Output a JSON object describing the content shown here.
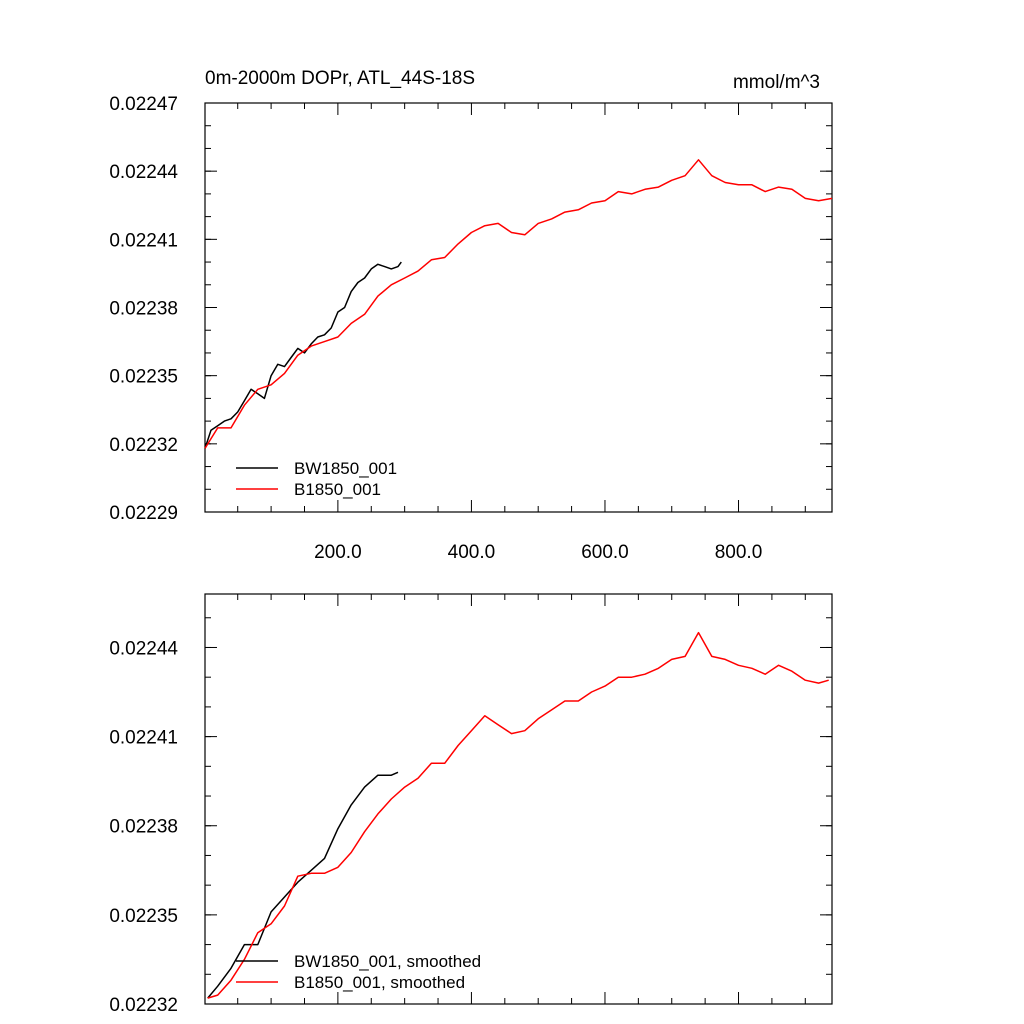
{
  "chart_data": [
    {
      "type": "line",
      "title": "0m-2000m DOPr, ATL_44S-18S",
      "units": "mmol/m^3",
      "xlim": [
        1,
        940
      ],
      "ylim": [
        0.02229,
        0.02247
      ],
      "x_ticks": [
        200,
        400,
        600,
        800
      ],
      "x_tick_labels": [
        "200.0",
        "400.0",
        "600.0",
        "800.0"
      ],
      "y_ticks": [
        0.02229,
        0.02232,
        0.02235,
        0.02238,
        0.02241,
        0.02244,
        0.02247
      ],
      "y_tick_labels": [
        "0.02229",
        "0.02232",
        "0.02235",
        "0.02238",
        "0.02241",
        "0.02244",
        "0.02247"
      ],
      "legend_position": "bottom-left",
      "series": [
        {
          "name": "BW1850_001",
          "color": "#000000",
          "x": [
            1,
            10,
            20,
            30,
            40,
            50,
            60,
            70,
            80,
            90,
            100,
            110,
            120,
            130,
            140,
            150,
            160,
            170,
            180,
            190,
            200,
            210,
            220,
            230,
            240,
            250,
            260,
            270,
            280,
            290,
            295
          ],
          "y": [
            0.022318,
            0.022326,
            0.022328,
            0.02233,
            0.022331,
            0.022334,
            0.022339,
            0.022344,
            0.022342,
            0.02234,
            0.02235,
            0.022355,
            0.022354,
            0.022358,
            0.022362,
            0.02236,
            0.022364,
            0.022367,
            0.022368,
            0.022371,
            0.022378,
            0.02238,
            0.022387,
            0.022391,
            0.022393,
            0.022397,
            0.022399,
            0.022398,
            0.022397,
            0.022398,
            0.0224
          ]
        },
        {
          "name": "B1850_001",
          "color": "#ff0000",
          "x": [
            1,
            20,
            40,
            60,
            80,
            100,
            120,
            140,
            160,
            180,
            200,
            220,
            240,
            260,
            280,
            300,
            320,
            340,
            360,
            380,
            400,
            420,
            440,
            460,
            480,
            500,
            520,
            540,
            560,
            580,
            600,
            620,
            640,
            660,
            680,
            700,
            720,
            740,
            760,
            780,
            800,
            820,
            840,
            860,
            880,
            900,
            920,
            940
          ],
          "y": [
            0.022318,
            0.022327,
            0.022327,
            0.022337,
            0.022344,
            0.022346,
            0.022351,
            0.022359,
            0.022363,
            0.022365,
            0.022367,
            0.022373,
            0.022377,
            0.022385,
            0.02239,
            0.022393,
            0.022396,
            0.022401,
            0.022402,
            0.022408,
            0.022413,
            0.022416,
            0.022417,
            0.022413,
            0.022412,
            0.022417,
            0.022419,
            0.022422,
            0.022423,
            0.022426,
            0.022427,
            0.022431,
            0.02243,
            0.022432,
            0.022433,
            0.022436,
            0.022438,
            0.022445,
            0.022438,
            0.022435,
            0.022434,
            0.022434,
            0.022431,
            0.022433,
            0.022432,
            0.022428,
            0.022427,
            0.022428
          ]
        }
      ]
    },
    {
      "type": "line",
      "xlim": [
        1,
        940
      ],
      "ylim": [
        0.02232,
        0.022458
      ],
      "x_ticks": [
        200,
        400,
        600,
        800
      ],
      "x_tick_labels": [],
      "y_ticks": [
        0.02232,
        0.02235,
        0.02238,
        0.02241,
        0.02244
      ],
      "y_tick_labels": [
        "0.02232",
        "0.02235",
        "0.02238",
        "0.02241",
        "0.02244"
      ],
      "legend_position": "bottom-left",
      "series": [
        {
          "name": "BW1850_001, smoothed",
          "color": "#000000",
          "x": [
            5,
            20,
            40,
            60,
            80,
            100,
            120,
            140,
            160,
            180,
            200,
            220,
            240,
            260,
            280,
            290
          ],
          "y": [
            0.022322,
            0.022326,
            0.022332,
            0.02234,
            0.02234,
            0.022351,
            0.022356,
            0.022361,
            0.022365,
            0.022369,
            0.022379,
            0.022387,
            0.022393,
            0.022397,
            0.022397,
            0.022398
          ]
        },
        {
          "name": "B1850_001, smoothed",
          "color": "#ff0000",
          "x": [
            5,
            20,
            40,
            60,
            80,
            100,
            120,
            140,
            160,
            180,
            200,
            220,
            240,
            260,
            280,
            300,
            320,
            340,
            360,
            380,
            400,
            420,
            440,
            460,
            480,
            500,
            520,
            540,
            560,
            580,
            600,
            620,
            640,
            660,
            680,
            700,
            720,
            740,
            760,
            780,
            800,
            820,
            840,
            860,
            880,
            900,
            920,
            935
          ],
          "y": [
            0.022322,
            0.022323,
            0.022328,
            0.022335,
            0.022344,
            0.022347,
            0.022353,
            0.022363,
            0.022364,
            0.022364,
            0.022366,
            0.022371,
            0.022378,
            0.022384,
            0.022389,
            0.022393,
            0.022396,
            0.022401,
            0.022401,
            0.022407,
            0.022412,
            0.022417,
            0.022414,
            0.022411,
            0.022412,
            0.022416,
            0.022419,
            0.022422,
            0.022422,
            0.022425,
            0.022427,
            0.02243,
            0.02243,
            0.022431,
            0.022433,
            0.022436,
            0.022437,
            0.022445,
            0.022437,
            0.022436,
            0.022434,
            0.022433,
            0.022431,
            0.022434,
            0.022432,
            0.022429,
            0.022428,
            0.022429
          ]
        }
      ]
    }
  ]
}
